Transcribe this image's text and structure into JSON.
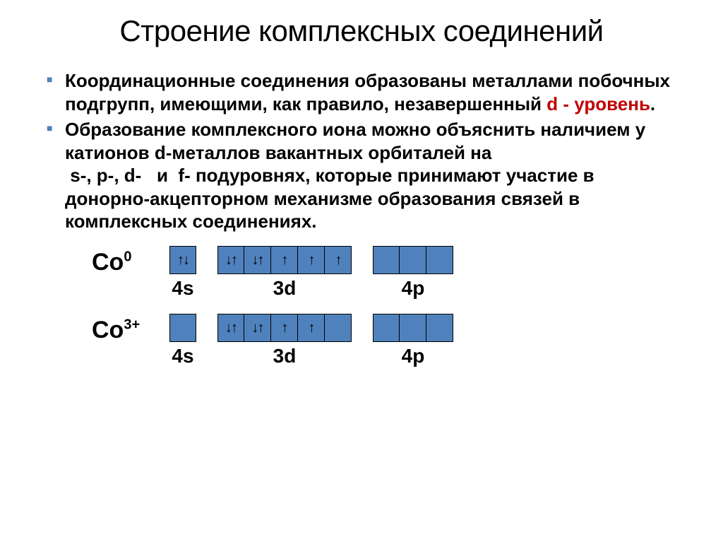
{
  "title": "Строение комплексных соединений",
  "bullets": [
    {
      "parts": [
        {
          "text": "Координационные соединения образованы металлами побочных подгрупп, имеющими, как правило, незавершенный ",
          "color": "#000000"
        },
        {
          "text": "d - уровень",
          "color": "#c00000"
        },
        {
          "text": ".",
          "color": "#000000"
        }
      ],
      "marker_color": "#4f81bd"
    },
    {
      "parts": [
        {
          "text": "Образование комплексного иона можно объяснить наличием у катионов d-металлов вакантных орбиталей на\n s-, p-, d-   и  f- подуровнях, которые принимают участие в донорно-акцепторном механизме образования связей в комплексных соединениях.",
          "color": "#000000"
        }
      ],
      "marker_color": "#4f81bd"
    }
  ],
  "diagrams": [
    {
      "species_base": "Co",
      "species_sup": "0",
      "groups": [
        {
          "label": "4s",
          "boxes": [
            {
              "arrows": "↑↓",
              "bg": "#4f81bd"
            }
          ]
        },
        {
          "label": "3d",
          "boxes": [
            {
              "arrows": "↓↑",
              "bg": "#4f81bd"
            },
            {
              "arrows": "↓↑",
              "bg": "#4f81bd"
            },
            {
              "arrows": "↑",
              "bg": "#4f81bd"
            },
            {
              "arrows": "↑",
              "bg": "#4f81bd"
            },
            {
              "arrows": "↑",
              "bg": "#4f81bd"
            }
          ]
        },
        {
          "label": "4p",
          "boxes": [
            {
              "arrows": "",
              "bg": "#4f81bd"
            },
            {
              "arrows": "",
              "bg": "#4f81bd"
            },
            {
              "arrows": "",
              "bg": "#4f81bd"
            }
          ]
        }
      ]
    },
    {
      "species_base": "Co",
      "species_sup": "3+",
      "groups": [
        {
          "label": "4s",
          "boxes": [
            {
              "arrows": "",
              "bg": "#4f81bd"
            }
          ]
        },
        {
          "label": "3d",
          "boxes": [
            {
              "arrows": "↓↑",
              "bg": "#4f81bd"
            },
            {
              "arrows": "↓↑",
              "bg": "#4f81bd"
            },
            {
              "arrows": "↑",
              "bg": "#4f81bd"
            },
            {
              "arrows": "↑",
              "bg": "#4f81bd"
            },
            {
              "arrows": "",
              "bg": "#4f81bd"
            }
          ]
        },
        {
          "label": "4p",
          "boxes": [
            {
              "arrows": "",
              "bg": "#4f81bd"
            },
            {
              "arrows": "",
              "bg": "#4f81bd"
            },
            {
              "arrows": "",
              "bg": "#4f81bd"
            }
          ]
        }
      ]
    }
  ]
}
